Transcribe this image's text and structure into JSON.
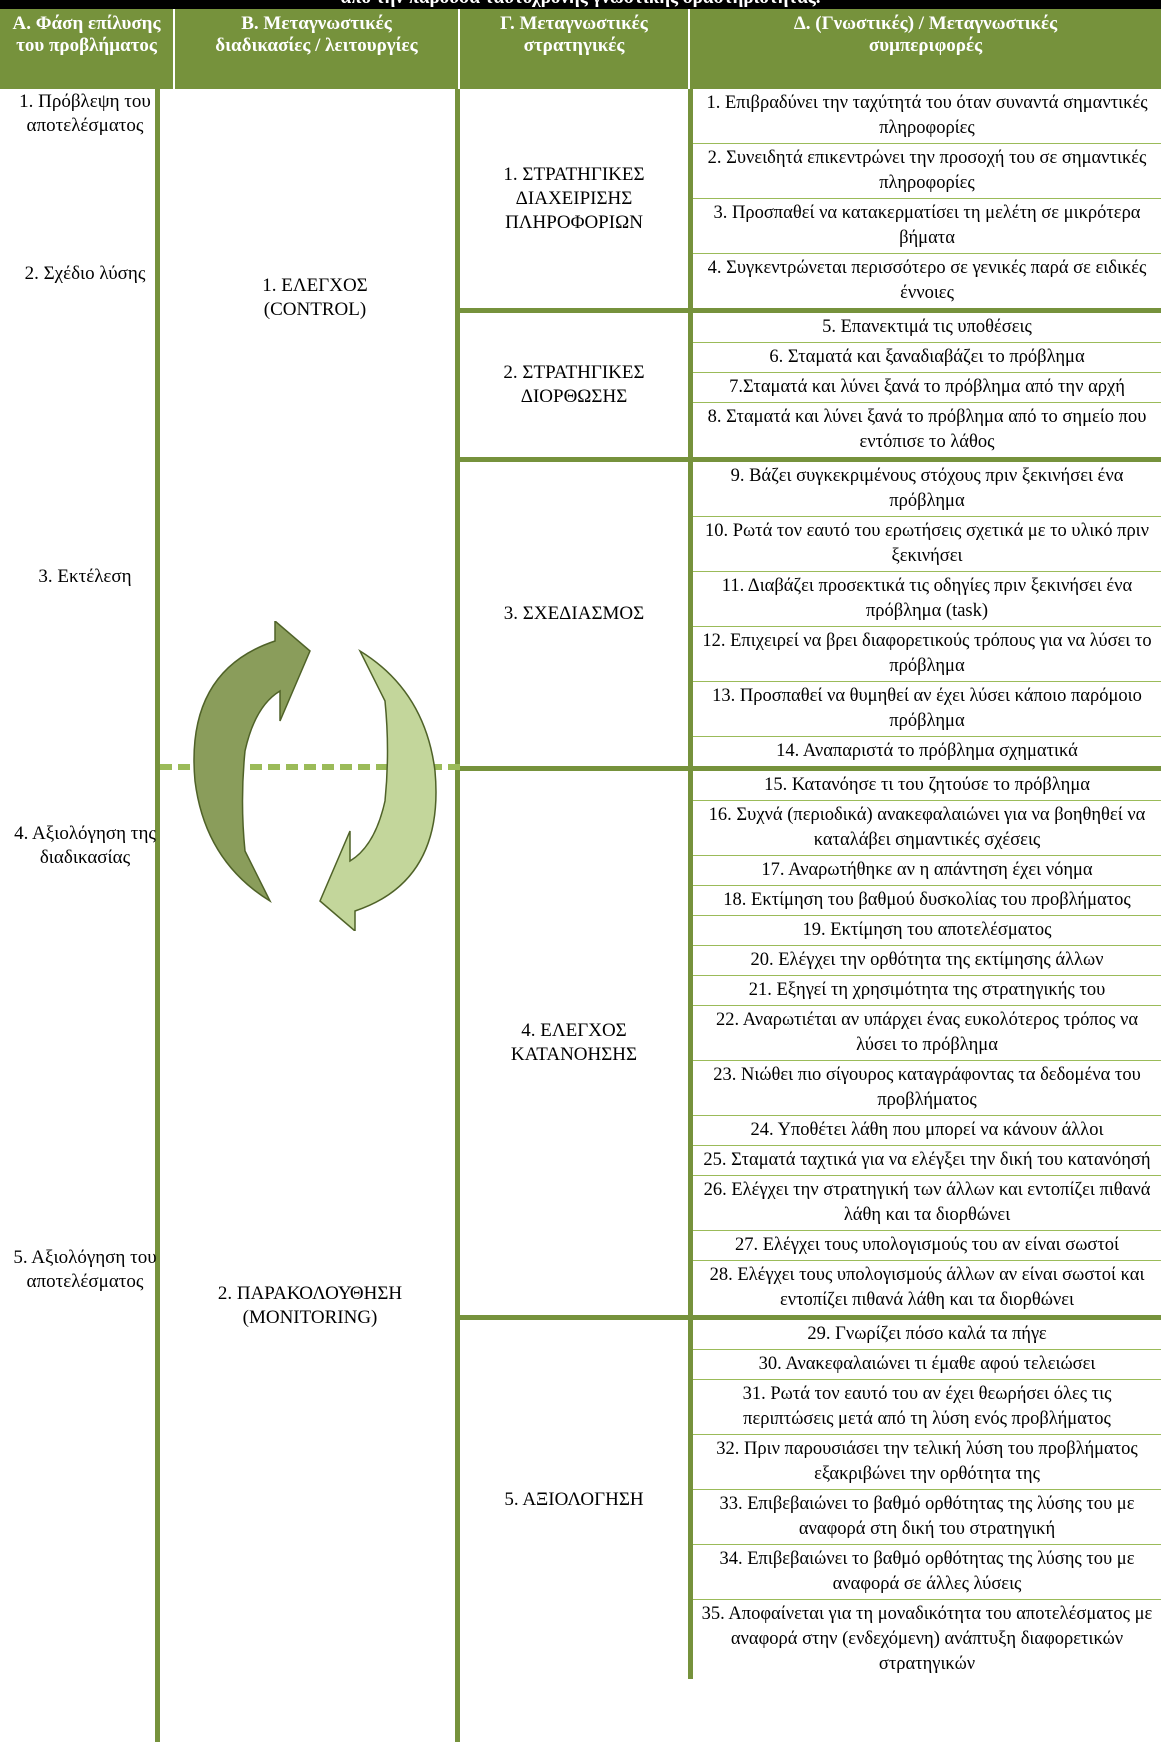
{
  "header": {
    "title": "από την παρούσα ταυτόχρονης γνωστικής δραστηριότητας."
  },
  "columns": [
    "Α. Φάση επίλυσης του προβλήματος",
    "Β. Μεταγνωστικές διαδικασίες / λειτουργίες",
    "Γ. Μεταγνωστικές στρατηγικές",
    "Δ. (Γνωστικές) / Μεταγνωστικές συμπεριφορές"
  ],
  "phases": [
    "1. Πρόβλεψη του αποτελέσματος",
    "2. Σχέδιο λύσης",
    "3. Εκτέλεση",
    "4. Αξιολόγηση της διαδικασίας",
    "5. Αξιολόγηση του αποτελέσματος"
  ],
  "processes": [
    "1. ΕΛΕΓΧΟΣ (CONTROL)",
    "2. ΠΑΡΑΚΟΛΟΥΘΗΣΗ (MONITORING)"
  ],
  "groups": [
    {
      "label": "1. ΣΤΡΑΤΗΓΙΚΕΣ ΔΙΑΧΕΙΡΙΣΗΣ ΠΛΗΡΟΦΟΡΙΩΝ",
      "items": [
        "1. Επιβραδύνει την ταχύτητά του όταν συναντά σημαντικές πληροφορίες",
        "2. Συνειδητά επικεντρώνει την προσοχή του σε σημαντικές πληροφορίες",
        "3. Προσπαθεί να κατακερματίσει τη μελέτη σε μικρότερα βήματα",
        "4. Συγκεντρώνεται περισσότερο σε γενικές παρά σε ειδικές έννοιες"
      ]
    },
    {
      "label": "2. ΣΤΡΑΤΗΓΙΚΕΣ ΔΙΟΡΘΩΣΗΣ",
      "items": [
        "5. Επανεκτιμά τις υποθέσεις",
        "6. Σταματά και ξαναδιαβάζει το πρόβλημα",
        "7.Σταματά και λύνει ξανά το πρόβλημα από την αρχή",
        "8. Σταματά και λύνει ξανά το πρόβλημα από το σημείο που εντόπισε το λάθος"
      ]
    },
    {
      "label": "3. ΣΧΕΔΙΑΣΜΟΣ",
      "items": [
        "9. Βάζει συγκεκριμένους στόχους πριν ξεκινήσει ένα πρόβλημα",
        "10. Ρωτά τον εαυτό του ερωτήσεις σχετικά με το υλικό πριν ξεκινήσει",
        "11. Διαβάζει προσεκτικά τις οδηγίες πριν ξεκινήσει ένα πρόβλημα (task)",
        "12. Επιχειρεί να βρει διαφορετικούς τρόπους για να λύσει το πρόβλημα",
        "13. Προσπαθεί να θυμηθεί αν έχει λύσει κάποιο παρόμοιο πρόβλημα",
        "14. Αναπαριστά το πρόβλημα σχηματικά"
      ]
    },
    {
      "label": "4. ΕΛΕΓΧΟΣ ΚΑΤΑΝΟΗΣΗΣ",
      "items": [
        "15. Κατανόησε τι του ζητούσε το πρόβλημα",
        "16. Συχνά (περιοδικά) ανακεφαλαιώνει για να βοηθηθεί να καταλάβει σημαντικές σχέσεις",
        "17. Αναρωτήθηκε αν η απάντηση έχει νόημα",
        "18. Εκτίμηση του βαθμού δυσκολίας του προβλήματος",
        "19. Εκτίμηση του αποτελέσματος",
        "20. Ελέγχει την ορθότητα της εκτίμησης άλλων",
        "21. Εξηγεί τη χρησιμότητα της στρατηγικής του",
        "22. Αναρωτιέται αν υπάρχει ένας ευκολότερος τρόπος να λύσει το πρόβλημα",
        "23. Νιώθει πιο σίγουρος καταγράφοντας τα δεδομένα του προβλήματος",
        "24. Υποθέτει λάθη που μπορεί να κάνουν άλλοι",
        "25. Σταματά ταχτικά για να ελέγξει την δική του κατανόησή",
        "26. Ελέγχει την στρατηγική των άλλων και εντοπίζει πιθανά λάθη και τα διορθώνει",
        "27. Ελέγχει τους υπολογισμούς του αν είναι σωστοί",
        "28. Ελέγχει τους υπολογισμούς άλλων αν είναι σωστοί και εντοπίζει πιθανά λάθη και τα διορθώνει"
      ]
    },
    {
      "label": "5. ΑΞΙΟΛΟΓΗΣΗ",
      "items": [
        "29. Γνωρίζει πόσο καλά τα πήγε",
        "30. Ανακεφαλαιώνει τι έμαθε αφού τελειώσει",
        "31. Ρωτά τον εαυτό του αν έχει θεωρήσει όλες τις περιπτώσεις μετά από τη λύση ενός προβλήματος",
        "32. Πριν παρουσιάσει την τελική λύση του προβλήματος εξακριβώνει την ορθότητα της",
        "33. Επιβεβαιώνει το βαθμό ορθότητας της λύσης του με αναφορά στη δική του στρατηγική",
        "34. Επιβεβαιώνει το βαθμό ορθότητας της λύσης του με αναφορά σε άλλες λύσεις",
        "35. Αποφαίνεται για τη μοναδικότητα του αποτελέσματος με αναφορά στην (ενδεχόμενη) ανάπτυξη διαφορετικών στρατηγικών"
      ]
    }
  ]
}
